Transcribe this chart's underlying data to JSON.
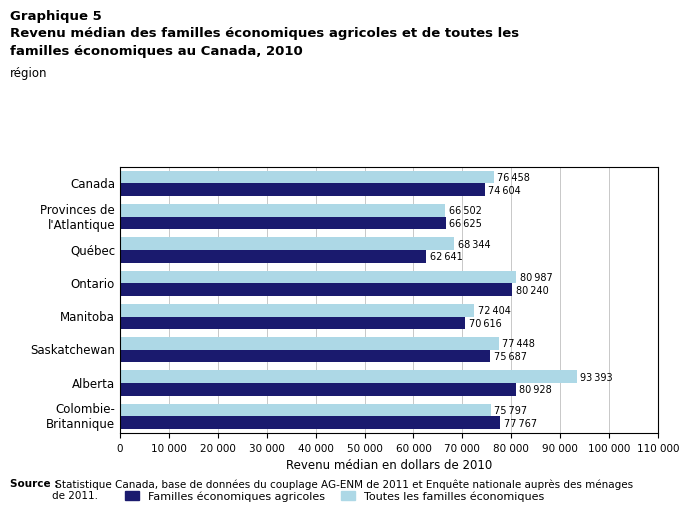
{
  "title_line1": "Graphique 5",
  "title_line2": "Revenu médian des familles économiques agricoles et de toutes les",
  "title_line3": "familles économiques au Canada, 2010",
  "ylabel_text": "région",
  "xlabel_text": "Revenu médian en dollars de 2010",
  "categories": [
    "Canada",
    "Provinces de\nl'Atlantique",
    "Québec",
    "Ontario",
    "Manitoba",
    "Saskatchewan",
    "Alberta",
    "Colombie-\nBritannique"
  ],
  "agricoles": [
    74604,
    66625,
    62641,
    80240,
    70616,
    75687,
    80928,
    77767
  ],
  "toutes": [
    76458,
    66502,
    68344,
    80987,
    72404,
    77448,
    93393,
    75797
  ],
  "color_agricoles": "#1a1a6e",
  "color_toutes": "#add8e6",
  "xlim": [
    0,
    110000
  ],
  "xticks": [
    0,
    10000,
    20000,
    30000,
    40000,
    50000,
    60000,
    70000,
    80000,
    90000,
    100000,
    110000
  ],
  "xtick_labels": [
    "0",
    "10 000",
    "20 000",
    "30 000",
    "40 000",
    "50 000",
    "60 000",
    "70 000",
    "80 000",
    "90 000",
    "100 000",
    "110 000"
  ],
  "legend_agricoles": "Familles économiques agricoles",
  "legend_toutes": "Toutes les familles économiques",
  "source_bold": "Source :",
  "source_normal": " Statistique Canada, base de données du couplage AG-ENM de 2011 et Enquête nationale auprès des ménages\nde 2011.",
  "bar_height": 0.38
}
